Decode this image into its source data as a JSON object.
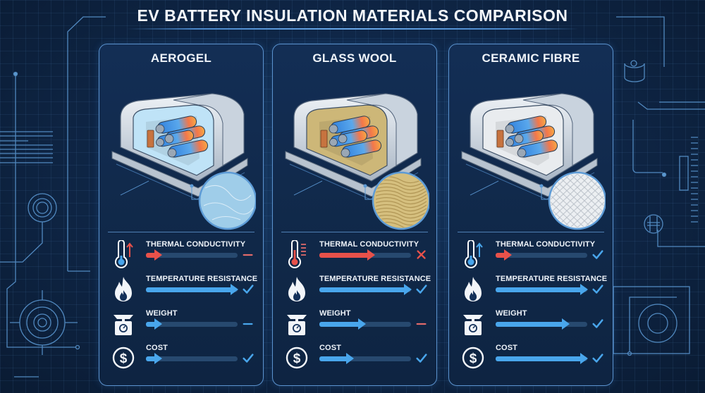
{
  "title": "EV BATTERY INSULATION MATERIALS COMPARISON",
  "colors": {
    "background": "#0f2748",
    "panel_border": "#5b93cf",
    "bar_blue": "#49a6ec",
    "bar_red": "#e8514a",
    "track": "#27496f",
    "check": "#49a6ec",
    "dash_red": "#e06a6a",
    "dash_blue": "#49a6ec",
    "cross_red": "#e8514a"
  },
  "metric_labels": [
    "THERMAL CONDUCTIVITY",
    "TEMPERATURE RESISTANCE",
    "WEIGHT",
    "COST"
  ],
  "panels": [
    {
      "name": "AEROGEL",
      "insulation_color": "#bfe3f7",
      "texture": "aerogel-sample",
      "thermometer_indicator": "arrow-up-red",
      "metrics": [
        {
          "label": "THERMAL CONDUCTIVITY",
          "fill_pct": 15,
          "bar_color": "red",
          "status": "dash-red"
        },
        {
          "label": "TEMPERATURE RESISTANCE",
          "fill_pct": 100,
          "bar_color": "blue",
          "status": "check"
        },
        {
          "label": "WEIGHT",
          "fill_pct": 15,
          "bar_color": "blue",
          "status": "dash-blue"
        },
        {
          "label": "COST",
          "fill_pct": 15,
          "bar_color": "blue",
          "status": "check"
        }
      ]
    },
    {
      "name": "GLASS WOOL",
      "insulation_color": "#cdb778",
      "texture": "glass-wool-sample",
      "thermometer_indicator": "level-lines-red",
      "metrics": [
        {
          "label": "THERMAL CONDUCTIVITY",
          "fill_pct": 60,
          "bar_color": "red",
          "status": "cross"
        },
        {
          "label": "TEMPERATURE RESISTANCE",
          "fill_pct": 100,
          "bar_color": "blue",
          "status": "check"
        },
        {
          "label": "WEIGHT",
          "fill_pct": 50,
          "bar_color": "blue",
          "status": "dash-red"
        },
        {
          "label": "COST",
          "fill_pct": 37,
          "bar_color": "blue",
          "status": "check"
        }
      ]
    },
    {
      "name": "CERAMIC FIBRE",
      "insulation_color": "#e9ecef",
      "texture": "ceramic-fibre-sample",
      "thermometer_indicator": "arrow-up-blue",
      "metrics": [
        {
          "label": "THERMAL CONDUCTIVITY",
          "fill_pct": 13,
          "bar_color": "red",
          "status": "check"
        },
        {
          "label": "TEMPERATURE RESISTANCE",
          "fill_pct": 100,
          "bar_color": "blue",
          "status": "check"
        },
        {
          "label": "WEIGHT",
          "fill_pct": 80,
          "bar_color": "blue",
          "status": "check"
        },
        {
          "label": "COST",
          "fill_pct": 100,
          "bar_color": "blue",
          "status": "check"
        }
      ]
    }
  ]
}
